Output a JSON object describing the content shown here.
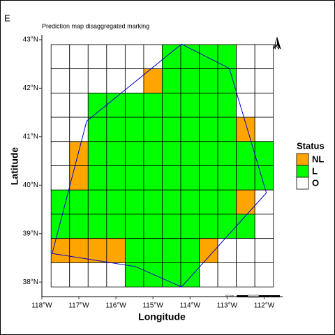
{
  "panel_label": "E",
  "chart_data": {
    "type": "grid_map",
    "title": "Prediction map disaggregated marking",
    "x_label": "Longitude",
    "y_label": "Latitude",
    "xlim": [
      -118.3,
      -111.5
    ],
    "ylim": [
      37.7,
      43.1
    ],
    "xticks": [
      {
        "value": -118,
        "label": "118°W"
      },
      {
        "value": -117,
        "label": "117°W"
      },
      {
        "value": -116,
        "label": "116°W"
      },
      {
        "value": -115,
        "label": "115°W"
      },
      {
        "value": -114,
        "label": "114°W"
      },
      {
        "value": -113,
        "label": "113°W"
      },
      {
        "value": -112,
        "label": "112°W"
      }
    ],
    "yticks": [
      {
        "value": 38,
        "label": "38°N"
      },
      {
        "value": 39,
        "label": "39°N"
      },
      {
        "value": 40,
        "label": "40°N"
      },
      {
        "value": 41,
        "label": "41°N"
      },
      {
        "value": 42,
        "label": "42°N"
      },
      {
        "value": 43,
        "label": "43°N"
      }
    ],
    "grid_lon": [
      -117.75,
      -111.75
    ],
    "grid_lat": [
      37.9,
      42.9
    ],
    "legend_title": "Status",
    "legend": [
      {
        "name": "NL",
        "color": "#ffa500"
      },
      {
        "name": "L",
        "color": "#00ff00"
      },
      {
        "name": "O",
        "color": "#ffffff"
      }
    ],
    "cells": [
      [
        "O",
        "O",
        "O",
        "O",
        "O",
        "O",
        "L",
        "L",
        "L",
        "L",
        "O",
        "O"
      ],
      [
        "O",
        "O",
        "O",
        "O",
        "O",
        "NL",
        "L",
        "L",
        "L",
        "L",
        "O",
        "O"
      ],
      [
        "O",
        "O",
        "L",
        "L",
        "L",
        "L",
        "L",
        "L",
        "L",
        "L",
        "O",
        "O"
      ],
      [
        "O",
        "O",
        "L",
        "L",
        "L",
        "L",
        "L",
        "L",
        "L",
        "L",
        "NL",
        "O"
      ],
      [
        "O",
        "NL",
        "L",
        "L",
        "L",
        "L",
        "L",
        "L",
        "L",
        "L",
        "L",
        "L"
      ],
      [
        "O",
        "NL",
        "L",
        "L",
        "L",
        "L",
        "L",
        "L",
        "L",
        "L",
        "L",
        "L"
      ],
      [
        "L",
        "L",
        "L",
        "L",
        "L",
        "L",
        "L",
        "L",
        "L",
        "L",
        "NL",
        "O"
      ],
      [
        "L",
        "L",
        "L",
        "L",
        "L",
        "L",
        "L",
        "L",
        "L",
        "L",
        "L",
        "O"
      ],
      [
        "NL",
        "NL",
        "NL",
        "NL",
        "L",
        "L",
        "L",
        "L",
        "NL",
        "O",
        "O",
        "O"
      ],
      [
        "O",
        "O",
        "O",
        "O",
        "L",
        "L",
        "L",
        "L",
        "O",
        "O",
        "O",
        "O"
      ]
    ],
    "boundary": {
      "color": "#0000cc",
      "lon": [
        -114.23,
        -112.94,
        -111.94,
        -114.23,
        -115.47,
        -117.72,
        -116.79,
        -114.23
      ],
      "lat": [
        42.91,
        42.41,
        39.84,
        37.9,
        38.32,
        38.59,
        41.32,
        42.91
      ]
    },
    "north_label": "N",
    "scale_label": "100 km"
  }
}
